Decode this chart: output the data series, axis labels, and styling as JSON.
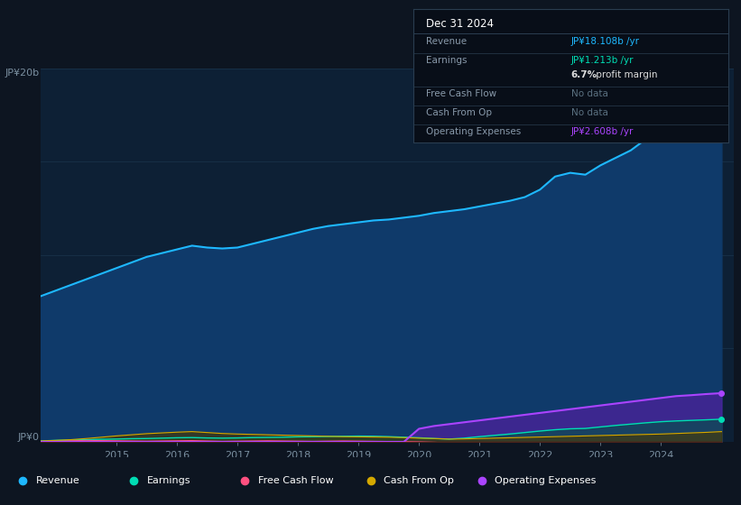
{
  "bg_color": "#0d1521",
  "chart_bg": "#0d2035",
  "grid_color": "#1e3a52",
  "axis_label_color": "#7a8fa0",
  "ylabel_top": "JP¥20b",
  "ylabel_bottom": "JP¥0",
  "years": [
    2013.75,
    2014.0,
    2014.25,
    2014.5,
    2014.75,
    2015.0,
    2015.25,
    2015.5,
    2015.75,
    2016.0,
    2016.25,
    2016.5,
    2016.75,
    2017.0,
    2017.25,
    2017.5,
    2017.75,
    2018.0,
    2018.25,
    2018.5,
    2018.75,
    2019.0,
    2019.25,
    2019.5,
    2019.75,
    2020.0,
    2020.25,
    2020.5,
    2020.75,
    2021.0,
    2021.25,
    2021.5,
    2021.75,
    2022.0,
    2022.25,
    2022.5,
    2022.75,
    2023.0,
    2023.25,
    2023.5,
    2023.75,
    2024.0,
    2024.25,
    2024.5,
    2024.75,
    2025.0
  ],
  "revenue": [
    7.8,
    8.1,
    8.4,
    8.7,
    9.0,
    9.3,
    9.6,
    9.9,
    10.1,
    10.3,
    10.5,
    10.4,
    10.35,
    10.4,
    10.6,
    10.8,
    11.0,
    11.2,
    11.4,
    11.55,
    11.65,
    11.75,
    11.85,
    11.9,
    12.0,
    12.1,
    12.25,
    12.35,
    12.45,
    12.6,
    12.75,
    12.9,
    13.1,
    13.5,
    14.2,
    14.4,
    14.3,
    14.8,
    15.2,
    15.6,
    16.2,
    17.0,
    17.5,
    17.8,
    18.0,
    18.108
  ],
  "earnings": [
    0.05,
    0.08,
    0.1,
    0.12,
    0.14,
    0.15,
    0.17,
    0.18,
    0.2,
    0.22,
    0.23,
    0.21,
    0.2,
    0.21,
    0.23,
    0.24,
    0.25,
    0.27,
    0.28,
    0.29,
    0.3,
    0.31,
    0.3,
    0.28,
    0.25,
    0.22,
    0.18,
    0.15,
    0.2,
    0.28,
    0.35,
    0.42,
    0.5,
    0.58,
    0.65,
    0.7,
    0.72,
    0.8,
    0.88,
    0.95,
    1.02,
    1.08,
    1.12,
    1.15,
    1.18,
    1.213
  ],
  "free_cash_flow": [
    0.02,
    0.04,
    0.06,
    0.08,
    0.07,
    0.06,
    0.05,
    0.04,
    0.05,
    0.06,
    0.07,
    0.05,
    0.03,
    0.04,
    0.05,
    0.06,
    0.05,
    0.04,
    0.03,
    0.04,
    0.05,
    0.04,
    0.03,
    0.02,
    0.01,
    0.0,
    -0.02,
    -0.05,
    -0.08,
    -0.1,
    -0.09,
    -0.08,
    -0.07,
    -0.06,
    -0.05,
    -0.04,
    -0.06,
    -0.08,
    -0.1,
    -0.12,
    -0.15,
    -0.18,
    -0.22,
    -0.25,
    -0.28,
    -0.3
  ],
  "cash_from_op": [
    0.05,
    0.08,
    0.12,
    0.18,
    0.25,
    0.32,
    0.38,
    0.44,
    0.48,
    0.52,
    0.55,
    0.5,
    0.45,
    0.42,
    0.4,
    0.38,
    0.36,
    0.34,
    0.32,
    0.3,
    0.28,
    0.27,
    0.26,
    0.25,
    0.23,
    0.2,
    0.18,
    0.15,
    0.16,
    0.18,
    0.2,
    0.22,
    0.24,
    0.26,
    0.28,
    0.3,
    0.32,
    0.34,
    0.36,
    0.38,
    0.4,
    0.42,
    0.45,
    0.48,
    0.51,
    0.55
  ],
  "operating_expenses": [
    0.0,
    0.0,
    0.0,
    0.0,
    0.0,
    0.0,
    0.0,
    0.0,
    0.0,
    0.0,
    0.0,
    0.0,
    0.0,
    0.0,
    0.0,
    0.0,
    0.0,
    0.0,
    0.0,
    0.0,
    0.0,
    0.0,
    0.0,
    0.0,
    0.0,
    0.7,
    0.85,
    0.95,
    1.05,
    1.15,
    1.25,
    1.35,
    1.45,
    1.55,
    1.65,
    1.75,
    1.85,
    1.95,
    2.05,
    2.15,
    2.25,
    2.35,
    2.45,
    2.5,
    2.56,
    2.608
  ],
  "revenue_color": "#1eb8ff",
  "earnings_color": "#00ddb4",
  "free_cash_flow_color": "#ff5080",
  "cash_from_op_color": "#d4a800",
  "op_expenses_color": "#aa44ff",
  "revenue_fill_color": "#0f3a6a",
  "op_expenses_fill_color": "#5020a0",
  "earnings_fill_color": "#005544",
  "cash_from_op_fill_color": "#4a3800",
  "x_ticks": [
    2015,
    2016,
    2017,
    2018,
    2019,
    2020,
    2021,
    2022,
    2023,
    2024
  ],
  "ylim": [
    0,
    20
  ],
  "xlim_min": 2013.75,
  "xlim_max": 2025.2,
  "info_box": {
    "title": "Dec 31 2024",
    "rows": [
      {
        "label": "Revenue",
        "value": "JP¥18.108b /yr",
        "value_color": "#1eb8ff",
        "dimmed": false
      },
      {
        "label": "Earnings",
        "value": "JP¥1.213b /yr",
        "value_color": "#00ddb4",
        "dimmed": false
      },
      {
        "label": "",
        "value": "6.7% profit margin",
        "value_color": "#dddddd",
        "dimmed": false,
        "bold_prefix": "6.7%"
      },
      {
        "label": "Free Cash Flow",
        "value": "No data",
        "value_color": "#5a7080",
        "dimmed": true
      },
      {
        "label": "Cash From Op",
        "value": "No data",
        "value_color": "#5a7080",
        "dimmed": true
      },
      {
        "label": "Operating Expenses",
        "value": "JP¥2.608b /yr",
        "value_color": "#aa44ff",
        "dimmed": false
      }
    ]
  },
  "legend": [
    {
      "label": "Revenue",
      "color": "#1eb8ff"
    },
    {
      "label": "Earnings",
      "color": "#00ddb4"
    },
    {
      "label": "Free Cash Flow",
      "color": "#ff5080"
    },
    {
      "label": "Cash From Op",
      "color": "#d4a800"
    },
    {
      "label": "Operating Expenses",
      "color": "#aa44ff"
    }
  ]
}
